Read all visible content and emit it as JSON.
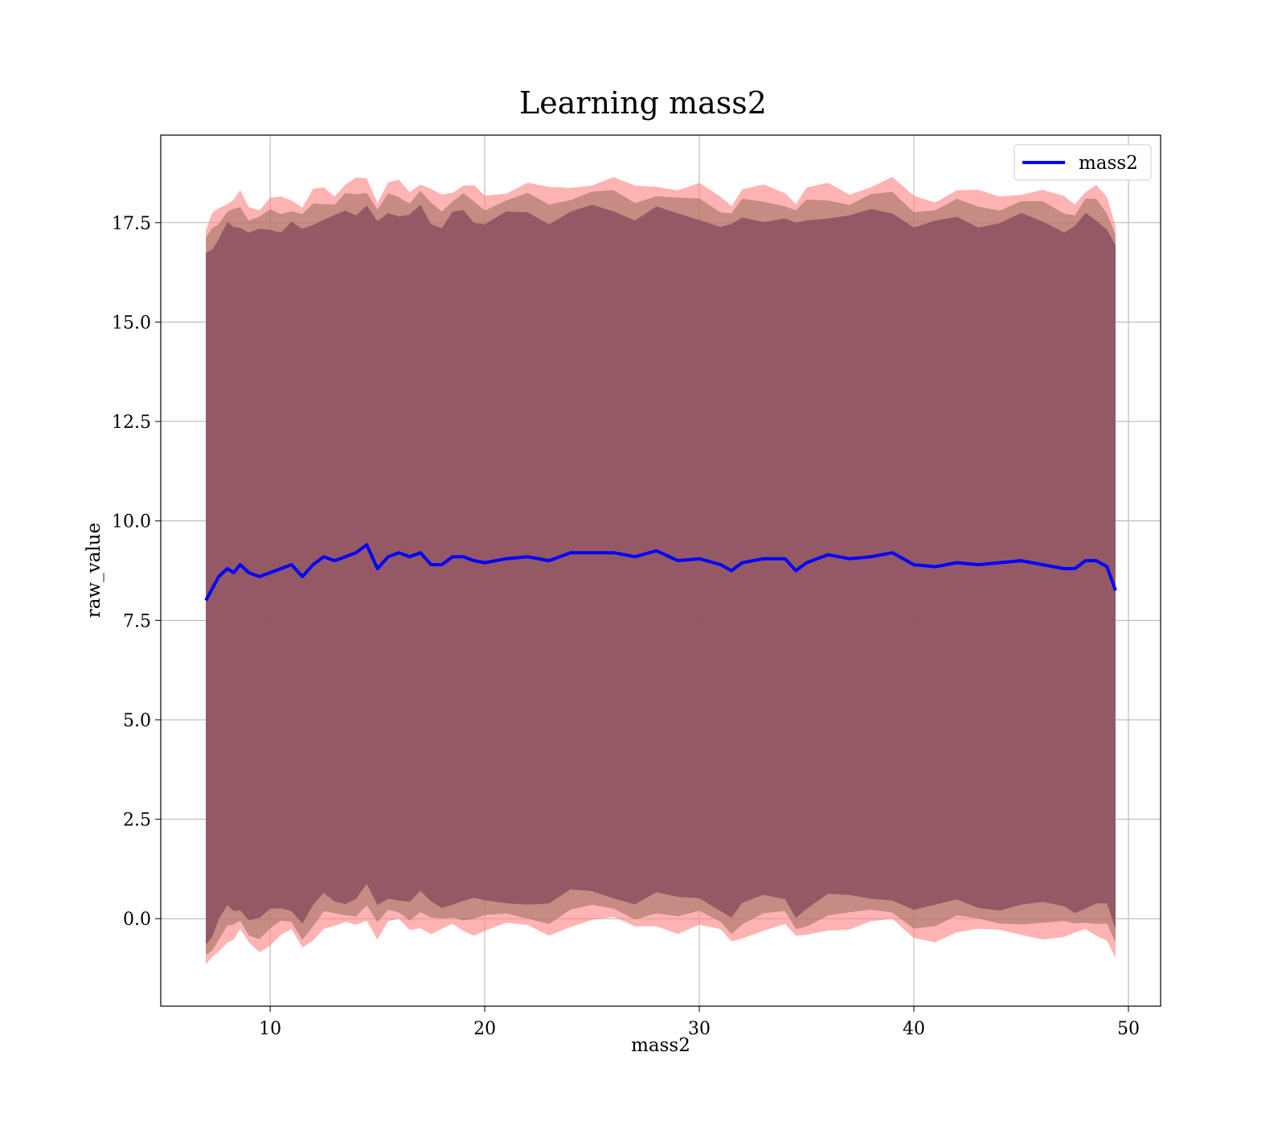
{
  "chart_data": {
    "type": "line",
    "title": "Learning mass2",
    "xlabel": "mass2",
    "ylabel": "raw_value",
    "xlim": [
      4.9,
      51.5
    ],
    "ylim": [
      -2.2,
      19.7
    ],
    "x_ticks": [
      10,
      20,
      30,
      40,
      50
    ],
    "x_tick_labels": [
      "10",
      "20",
      "30",
      "40",
      "50"
    ],
    "y_ticks": [
      0,
      2.5,
      5,
      7.5,
      10,
      12.5,
      15,
      17.5
    ],
    "y_tick_labels": [
      "0.0",
      "2.5",
      "5.0",
      "7.5",
      "10.0",
      "12.5",
      "15.0",
      "17.5"
    ],
    "grid": true,
    "legend": {
      "position": "top-right",
      "entries": [
        "mass2"
      ]
    },
    "series": [
      {
        "name": "mass2",
        "color": "#0000ff",
        "x": [
          7.0,
          7.3,
          7.6,
          8.0,
          8.3,
          8.6,
          9.0,
          9.5,
          10.0,
          10.5,
          11.0,
          11.5,
          12.0,
          12.5,
          13.0,
          13.5,
          14.0,
          14.5,
          15.0,
          15.5,
          16.0,
          16.5,
          17.0,
          17.5,
          18.0,
          18.5,
          19.0,
          19.5,
          20.0,
          21.0,
          22.0,
          23.0,
          24.0,
          25.0,
          26.0,
          27.0,
          28.0,
          29.0,
          30.0,
          31.0,
          31.5,
          32.0,
          33.0,
          34.0,
          34.5,
          35.0,
          36.0,
          37.0,
          38.0,
          39.0,
          40.0,
          41.0,
          42.0,
          43.0,
          44.0,
          45.0,
          46.0,
          47.0,
          47.5,
          48.0,
          48.5,
          49.0,
          49.4
        ],
        "y": [
          8.0,
          8.3,
          8.6,
          8.8,
          8.7,
          8.9,
          8.7,
          8.6,
          8.7,
          8.8,
          8.9,
          8.6,
          8.9,
          9.1,
          9.0,
          9.1,
          9.2,
          9.4,
          8.8,
          9.1,
          9.2,
          9.1,
          9.2,
          8.9,
          8.9,
          9.1,
          9.1,
          9.0,
          8.95,
          9.05,
          9.1,
          9.0,
          9.2,
          9.2,
          9.2,
          9.1,
          9.25,
          9.0,
          9.05,
          8.9,
          8.75,
          8.95,
          9.05,
          9.05,
          8.75,
          8.95,
          9.15,
          9.05,
          9.1,
          9.2,
          8.9,
          8.85,
          8.95,
          8.9,
          8.95,
          9.0,
          8.9,
          8.8,
          8.8,
          9.0,
          9.0,
          8.85,
          8.25
        ]
      }
    ],
    "bands": [
      {
        "color": "#ff8080",
        "description_color_role": "outer band",
        "offset_upper": 9.3,
        "offset_lower": -9.3
      },
      {
        "color": "#a07060",
        "description_color_role": "middle band",
        "offset_upper": 9.0,
        "offset_lower": -9.0
      },
      {
        "color": "#8b5060",
        "description_color_role": "inner band",
        "offset_upper": 8.6,
        "offset_lower": -8.6
      }
    ]
  }
}
